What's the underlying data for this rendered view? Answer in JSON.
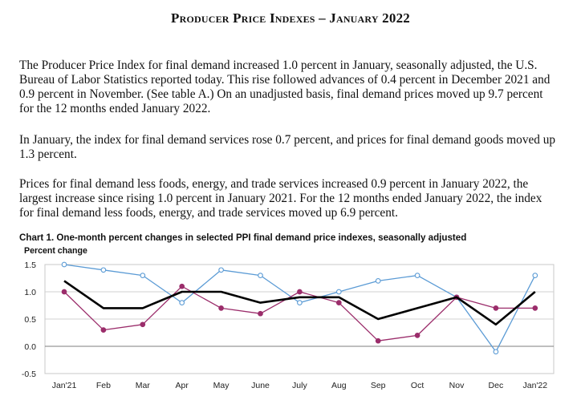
{
  "title": "Producer Price Indexes – January 2022",
  "paragraphs": [
    "The Producer Price Index for final demand increased 1.0 percent in January, seasonally adjusted, the U.S. Bureau of Labor Statistics reported today. This rise followed advances of 0.4 percent in December 2021 and 0.9 percent in November. (See table A.) On an unadjusted basis, final demand prices moved up 9.7 percent for the 12 months ended January 2022.",
    "In January, the index for final demand services rose 0.7 percent, and prices for final demand goods moved up 1.3 percent.",
    "Prices for final demand less foods, energy, and trade services increased 0.9 percent in January 2022, the largest increase since rising 1.0 percent in January 2021. For the 12 months ended January 2022, the index for final demand less foods, energy, and trade services moved up 6.9 percent."
  ],
  "chart_data": {
    "type": "line",
    "title": "Chart 1. One-month percent changes in selected PPI final demand price indexes, seasonally adjusted",
    "ylabel": "Percent change",
    "xlabel": "",
    "categories": [
      "Jan'21",
      "Feb",
      "Mar",
      "Apr",
      "May",
      "June",
      "July",
      "Aug",
      "Sep",
      "Oct",
      "Nov",
      "Dec",
      "Jan'22"
    ],
    "ylim": [
      -0.5,
      1.5
    ],
    "yticks": [
      "1.5",
      "1.0",
      "0.5",
      "0.0",
      "-0.5"
    ],
    "ytick_values": [
      1.5,
      1.0,
      0.5,
      0.0,
      -0.5
    ],
    "grid": true,
    "series": [
      {
        "color": "#000000",
        "values": [
          1.2,
          0.7,
          0.7,
          1.0,
          1.0,
          0.8,
          0.9,
          0.9,
          0.5,
          0.7,
          0.9,
          0.4,
          1.0
        ]
      },
      {
        "color": "#5b9bd5",
        "values": [
          1.5,
          1.4,
          1.3,
          0.8,
          1.4,
          1.3,
          0.8,
          1.0,
          1.2,
          1.3,
          0.9,
          -0.1,
          1.3
        ]
      },
      {
        "color": "#9b2d6b",
        "values": [
          1.0,
          0.3,
          0.4,
          1.1,
          0.7,
          0.6,
          1.0,
          0.8,
          0.1,
          0.2,
          0.9,
          0.7,
          0.7
        ]
      }
    ]
  }
}
